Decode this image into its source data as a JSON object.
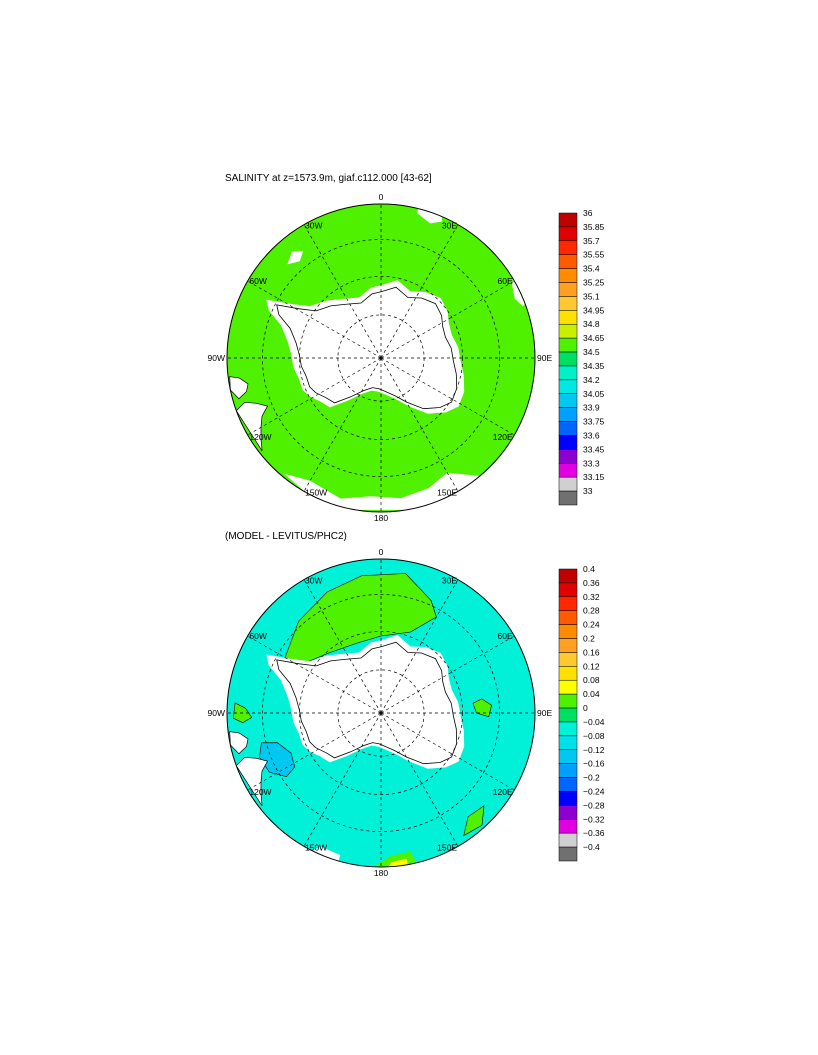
{
  "panels": [
    {
      "id": "salinity",
      "title": "SALINITY at z=1573.9m, giaf.c112.000 [43-62]",
      "lon_labels": [
        "0",
        "30E",
        "60E",
        "90E",
        "120E",
        "150E",
        "180",
        "150W",
        "120W",
        "90W",
        "60W",
        "30W"
      ],
      "background_color": "#4ff000",
      "colorbar": {
        "labels": [
          "36",
          "35.85",
          "35.7",
          "35.55",
          "35.4",
          "35.25",
          "35.1",
          "34.95",
          "34.8",
          "34.65",
          "34.5",
          "34.35",
          "34.2",
          "34.05",
          "33.9",
          "33.75",
          "33.6",
          "33.45",
          "33.3",
          "33.15",
          "33"
        ],
        "colors": [
          "#c00000",
          "#e00000",
          "#ff2800",
          "#ff5a00",
          "#ff8c00",
          "#ffa020",
          "#ffc830",
          "#ffe000",
          "#c8f000",
          "#4ff000",
          "#00e060",
          "#00f0c8",
          "#00e8e0",
          "#00c8f0",
          "#00a0ff",
          "#0064ff",
          "#0000ff",
          "#8c00d0",
          "#e000e0",
          "#d0d0d0",
          "#707070"
        ]
      }
    },
    {
      "id": "difference",
      "title": "(MODEL - LEVITUS/PHC2)",
      "lon_labels": [
        "0",
        "30E",
        "60E",
        "90E",
        "120E",
        "150E",
        "180",
        "150W",
        "120W",
        "90W",
        "60W",
        "30W"
      ],
      "background_color": "#00f0d8",
      "colorbar": {
        "labels": [
          "0.4",
          "0.36",
          "0.32",
          "0.28",
          "0.24",
          "0.2",
          "0.16",
          "0.12",
          "0.08",
          "0.04",
          "0",
          "−0.04",
          "−0.08",
          "−0.12",
          "−0.16",
          "−0.2",
          "−0.24",
          "−0.28",
          "−0.32",
          "−0.36",
          "−0.4"
        ],
        "colors": [
          "#c00000",
          "#e00000",
          "#ff2800",
          "#ff5a00",
          "#ff8c00",
          "#ffa020",
          "#ffc830",
          "#ffe000",
          "#ffff00",
          "#4ff000",
          "#00e060",
          "#00f0d8",
          "#00e0e8",
          "#00c8f0",
          "#00a0ff",
          "#0064ff",
          "#0000ff",
          "#8c00d0",
          "#e000e0",
          "#d0d0d0",
          "#707070"
        ]
      }
    }
  ]
}
